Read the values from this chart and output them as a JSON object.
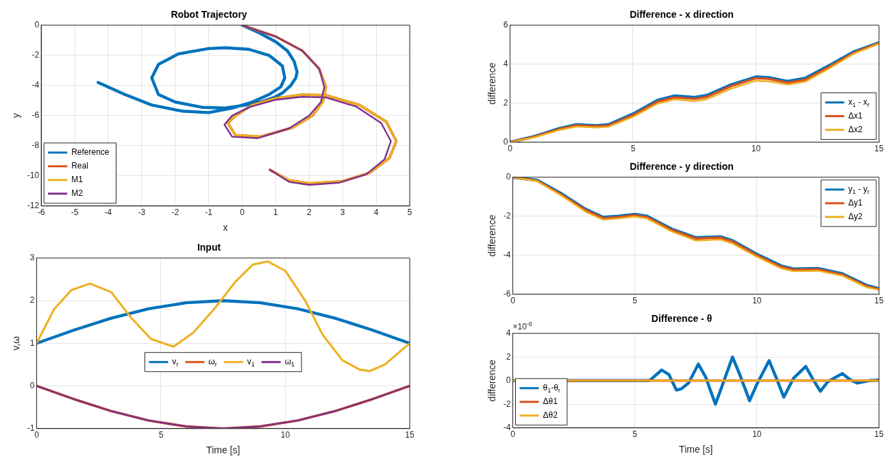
{
  "chart_data": [
    {
      "type": "line",
      "title": "Robot Trajectory",
      "xlabel": "x",
      "ylabel": "y",
      "xlim": [
        -6,
        5
      ],
      "xticks": [
        -6,
        -5,
        -4,
        -3,
        -2,
        -1,
        0,
        1,
        2,
        3,
        4,
        5
      ],
      "ylim": [
        -12,
        0
      ],
      "yticks": [
        -12,
        -10,
        -8,
        -6,
        -4,
        -2,
        0
      ],
      "grid": true,
      "legend": "bottom left",
      "series": [
        {
          "name": "Reference",
          "color": "#0072bd",
          "x": [
            0,
            0.5,
            1.0,
            1.35,
            1.55,
            1.64,
            1.6,
            1.45,
            1.2,
            0.95,
            0.55,
            0.1,
            -0.5,
            -1.2,
            -2.0,
            -2.5,
            -2.7,
            -2.5,
            -1.9,
            -1.0,
            -0.5,
            0.2,
            0.8,
            1.2,
            1.27,
            1.15,
            0.8,
            0.3,
            -0.3,
            -1.0,
            -1.8,
            -2.7,
            -3.5,
            -4.3
          ],
          "values": [
            0,
            -0.5,
            -1.1,
            -1.7,
            -2.4,
            -3.1,
            -3.5,
            -4.0,
            -4.5,
            -4.8,
            -5.1,
            -5.3,
            -5.5,
            -5.45,
            -5.1,
            -4.6,
            -3.5,
            -2.6,
            -1.9,
            -1.55,
            -1.5,
            -1.6,
            -2.0,
            -2.7,
            -3.5,
            -4.1,
            -4.6,
            -5.1,
            -5.5,
            -5.8,
            -5.7,
            -5.3,
            -4.6,
            -3.8
          ]
        },
        {
          "name": "Real",
          "color": "#d95319",
          "x": [
            0,
            1.0,
            1.8,
            2.3,
            2.5,
            2.4,
            2.1,
            1.5,
            0.55,
            -0.2,
            -0.43,
            -0.2,
            0.3,
            1.0,
            1.8,
            2.5,
            3.5,
            4.3,
            4.6,
            4.4,
            3.8,
            3.0,
            2.0,
            1.4,
            0.83
          ],
          "values": [
            0,
            -0.75,
            -1.7,
            -2.9,
            -4.1,
            -5.1,
            -6.0,
            -6.8,
            -7.4,
            -7.3,
            -6.5,
            -6.0,
            -5.3,
            -4.85,
            -4.6,
            -4.65,
            -5.3,
            -6.4,
            -7.7,
            -8.8,
            -9.8,
            -10.35,
            -10.5,
            -10.3,
            -9.6
          ]
        },
        {
          "name": "M1",
          "color": "#edb120",
          "x": [
            0,
            1.0,
            1.8,
            2.3,
            2.5,
            2.4,
            2.1,
            1.5,
            0.55,
            -0.2,
            -0.43,
            -0.2,
            0.3,
            1.0,
            1.8,
            2.5,
            3.5,
            4.3,
            4.6,
            4.4,
            3.8,
            3.0,
            2.0,
            1.4,
            0.83
          ],
          "values": [
            0,
            -0.75,
            -1.7,
            -2.9,
            -4.1,
            -5.1,
            -6.0,
            -6.8,
            -7.4,
            -7.3,
            -6.5,
            -6.0,
            -5.3,
            -4.85,
            -4.6,
            -4.65,
            -5.3,
            -6.4,
            -7.7,
            -8.8,
            -9.8,
            -10.35,
            -10.5,
            -10.3,
            -9.6
          ]
        },
        {
          "name": "M2",
          "color": "#7e2f8e",
          "x": [
            0,
            1.0,
            1.8,
            2.3,
            2.45,
            2.35,
            2.0,
            1.4,
            0.45,
            -0.3,
            -0.53,
            -0.3,
            0.2,
            1.0,
            1.8,
            2.5,
            3.4,
            4.15,
            4.44,
            4.25,
            3.7,
            2.9,
            2.0,
            1.4,
            0.83
          ],
          "values": [
            0,
            -0.75,
            -1.7,
            -2.9,
            -4.1,
            -5.1,
            -6.0,
            -6.85,
            -7.5,
            -7.4,
            -6.6,
            -6.0,
            -5.45,
            -4.95,
            -4.75,
            -4.8,
            -5.4,
            -6.5,
            -7.7,
            -8.9,
            -9.9,
            -10.45,
            -10.6,
            -10.4,
            -9.6
          ]
        }
      ]
    },
    {
      "type": "line",
      "title": "Input",
      "xlabel": "Time [s]",
      "ylabel": "v,ω",
      "xlim": [
        0,
        15
      ],
      "xticks": [
        0,
        5,
        10,
        15
      ],
      "ylim": [
        -1,
        3
      ],
      "yticks": [
        -1,
        0,
        1,
        2,
        3
      ],
      "grid": true,
      "legend": "center",
      "series": [
        {
          "name": "v$_{r}$",
          "color": "#0072bd",
          "x": [
            0,
            1.5,
            3,
            4.5,
            6,
            7.5,
            9,
            10.5,
            12,
            13.5,
            15
          ],
          "values": [
            1,
            1.31,
            1.59,
            1.81,
            1.95,
            2,
            1.95,
            1.81,
            1.59,
            1.31,
            1
          ]
        },
        {
          "name": "ω$_{r}$",
          "color": "#d95319",
          "x": [
            0,
            1.5,
            3,
            4.5,
            6,
            7.5,
            9,
            10.5,
            12,
            13.5,
            15
          ],
          "values": [
            0,
            -0.31,
            -0.59,
            -0.81,
            -0.95,
            -1,
            -0.95,
            -0.81,
            -0.59,
            -0.31,
            0
          ]
        },
        {
          "name": "v$_{1}$",
          "color": "#edb120",
          "x": [
            0,
            0.7,
            1.4,
            2.15,
            3,
            3.8,
            4.6,
            5.5,
            6.3,
            7.2,
            8,
            8.7,
            9.3,
            10,
            10.8,
            11.5,
            12.3,
            13,
            13.4,
            14,
            14.6,
            15
          ],
          "values": [
            1,
            1.8,
            2.25,
            2.4,
            2.2,
            1.6,
            1.1,
            0.92,
            1.25,
            1.85,
            2.45,
            2.85,
            2.92,
            2.7,
            2.0,
            1.2,
            0.6,
            0.38,
            0.35,
            0.5,
            0.8,
            1
          ]
        },
        {
          "name": "ω$_{1}$",
          "color": "#7e2f8e",
          "x": [
            0,
            1.5,
            3,
            4.5,
            6,
            7.5,
            9,
            10.5,
            12,
            13.5,
            15
          ],
          "values": [
            0,
            -0.31,
            -0.59,
            -0.81,
            -0.95,
            -1,
            -0.95,
            -0.81,
            -0.59,
            -0.31,
            0
          ]
        }
      ]
    },
    {
      "type": "line",
      "title": "Difference - x direction",
      "ylabel": "difference",
      "xlim": [
        0,
        15
      ],
      "xticks": [
        0,
        5,
        10,
        15
      ],
      "ylim": [
        0,
        6
      ],
      "yticks": [
        0,
        2,
        4,
        6
      ],
      "grid": true,
      "legend": "bottom right",
      "series": [
        {
          "name": "x$_{1}$ - x$_{r}$",
          "color": "#0072bd",
          "x": [
            0,
            1,
            2,
            2.7,
            3.5,
            4,
            5,
            6,
            6.7,
            7.5,
            8,
            9,
            10,
            10.5,
            11.3,
            12,
            13,
            14,
            15
          ],
          "values": [
            0,
            0.3,
            0.7,
            0.9,
            0.85,
            0.9,
            1.45,
            2.15,
            2.38,
            2.3,
            2.4,
            2.95,
            3.35,
            3.32,
            3.12,
            3.28,
            3.95,
            4.65,
            5.1
          ]
        },
        {
          "name": "Δx1",
          "color": "#d95319",
          "x": [
            0,
            1,
            2,
            2.7,
            3.5,
            4,
            5,
            6,
            6.7,
            7.5,
            8,
            9,
            10,
            10.5,
            11.3,
            12,
            13,
            14,
            15
          ],
          "values": [
            0,
            0.28,
            0.67,
            0.86,
            0.81,
            0.85,
            1.38,
            2.08,
            2.3,
            2.22,
            2.32,
            2.88,
            3.28,
            3.25,
            3.05,
            3.2,
            3.88,
            4.6,
            5.08
          ]
        },
        {
          "name": "Δx2",
          "color": "#edb120",
          "x": [
            0,
            1,
            2,
            2.7,
            3.5,
            4,
            5,
            6,
            6.7,
            7.5,
            8,
            9,
            10,
            10.5,
            11.3,
            12,
            13,
            14,
            15
          ],
          "values": [
            0,
            0.25,
            0.62,
            0.8,
            0.75,
            0.79,
            1.3,
            1.98,
            2.2,
            2.1,
            2.2,
            2.75,
            3.15,
            3.12,
            2.95,
            3.1,
            3.8,
            4.55,
            5.05
          ]
        }
      ]
    },
    {
      "type": "line",
      "title": "Difference - y direction",
      "ylabel": "difference",
      "xlim": [
        0,
        15
      ],
      "xticks": [
        0,
        5,
        10,
        15
      ],
      "ylim": [
        -6,
        0
      ],
      "yticks": [
        -6,
        -4,
        -2,
        0
      ],
      "grid": true,
      "legend": "top right",
      "series": [
        {
          "name": "y$_{1}$ - y$_{r}$",
          "color": "#0072bd",
          "x": [
            0,
            1,
            2,
            3,
            3.7,
            4.3,
            5,
            5.5,
            6.5,
            7.5,
            8.5,
            9,
            10,
            11,
            11.5,
            12.5,
            13.5,
            14.5,
            15
          ],
          "values": [
            0,
            -0.15,
            -0.85,
            -1.65,
            -2.05,
            -2.0,
            -1.9,
            -2.0,
            -2.65,
            -3.1,
            -3.05,
            -3.25,
            -3.95,
            -4.55,
            -4.7,
            -4.68,
            -4.95,
            -5.55,
            -5.72
          ]
        },
        {
          "name": "Δy1",
          "color": "#d95319",
          "x": [
            0,
            1,
            2,
            3,
            3.7,
            4.3,
            5,
            5.5,
            6.5,
            7.5,
            8.5,
            9,
            10,
            11,
            11.5,
            12.5,
            13.5,
            14.5,
            15
          ],
          "values": [
            0,
            -0.18,
            -0.9,
            -1.7,
            -2.1,
            -2.05,
            -1.95,
            -2.05,
            -2.7,
            -3.15,
            -3.1,
            -3.3,
            -4.0,
            -4.6,
            -4.75,
            -4.72,
            -5.0,
            -5.6,
            -5.75
          ]
        },
        {
          "name": "Δy2",
          "color": "#edb120",
          "x": [
            0,
            1,
            2,
            3,
            3.7,
            4.3,
            5,
            5.5,
            6.5,
            7.5,
            8.5,
            9,
            10,
            11,
            11.5,
            12.5,
            13.5,
            14.5,
            15
          ],
          "values": [
            0,
            -0.2,
            -0.95,
            -1.78,
            -2.18,
            -2.12,
            -2.02,
            -2.12,
            -2.78,
            -3.25,
            -3.2,
            -3.4,
            -4.08,
            -4.68,
            -4.82,
            -4.8,
            -5.05,
            -5.65,
            -5.78
          ]
        }
      ]
    },
    {
      "type": "line",
      "title": "Difference - θ",
      "xlabel": "Time [s]",
      "ylabel": "difference",
      "annotations": [
        "×10$^{-6}$"
      ],
      "xlim": [
        0,
        15
      ],
      "xticks": [
        0,
        5,
        10,
        15
      ],
      "ylim": [
        -4,
        4
      ],
      "yticks": [
        -4,
        -2,
        0,
        2,
        4
      ],
      "grid": true,
      "legend": "bottom left",
      "series": [
        {
          "name": "θ$_{1}$-θ$_{r}$",
          "color": "#0072bd",
          "x": [
            0,
            5.6,
            6.1,
            6.4,
            6.7,
            6.9,
            7.2,
            7.6,
            7.9,
            8.3,
            8.6,
            9.0,
            9.3,
            9.7,
            10.0,
            10.5,
            10.8,
            11.1,
            11.5,
            12.0,
            12.3,
            12.6,
            12.9,
            13.5,
            13.8,
            14.1,
            14.6,
            15
          ],
          "values": [
            0,
            0,
            0.9,
            0.5,
            -0.8,
            -0.7,
            -0.2,
            1.4,
            0.3,
            -2.0,
            -0.3,
            2.0,
            0.5,
            -1.7,
            -0.3,
            1.7,
            0.2,
            -1.4,
            0.2,
            1.2,
            0.1,
            -0.9,
            -0.1,
            0.6,
            0.1,
            -0.2,
            0,
            0.05
          ]
        },
        {
          "name": "Δθ1",
          "color": "#d95319",
          "x": [
            0,
            15
          ],
          "values": [
            0,
            0
          ]
        },
        {
          "name": "Δθ2",
          "color": "#edb120",
          "x": [
            0,
            15
          ],
          "values": [
            0,
            0
          ]
        }
      ]
    }
  ]
}
